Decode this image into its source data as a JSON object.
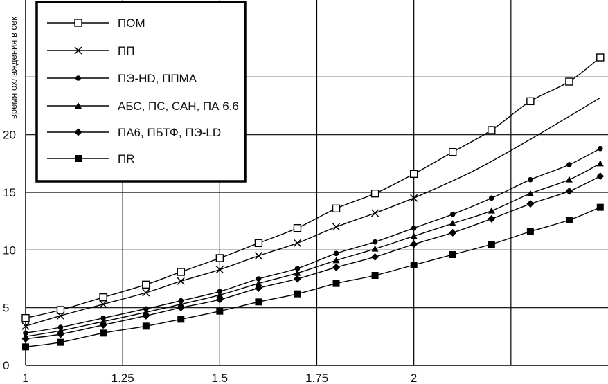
{
  "chart_data": {
    "type": "line",
    "ylabel": "время охлаждения в сек",
    "xlabel": "",
    "xlim": [
      1,
      2.5
    ],
    "ylim": [
      0,
      30
    ],
    "grid": true,
    "legend_position": "top-left",
    "x_ticks": [
      {
        "value": 1,
        "label": "1"
      },
      {
        "value": 1.25,
        "label": "1.25"
      },
      {
        "value": 1.5,
        "label": "1.5"
      },
      {
        "value": 1.75,
        "label": "1.75"
      },
      {
        "value": 2,
        "label": "2"
      }
    ],
    "x_grid": [
      1.25,
      1.5,
      1.75,
      2,
      2.25
    ],
    "y_ticks": [
      {
        "value": 0,
        "label": "0"
      },
      {
        "value": 5,
        "label": "5"
      },
      {
        "value": 10,
        "label": "10"
      },
      {
        "value": 15,
        "label": "15"
      },
      {
        "value": 20,
        "label": "20"
      }
    ],
    "y_grid": [
      5,
      10,
      15,
      20,
      25
    ],
    "series": [
      {
        "name": "ПОМ",
        "marker": "open-square",
        "draw_markers": true,
        "x": [
          1.0,
          1.09,
          1.2,
          1.31,
          1.4,
          1.5,
          1.6,
          1.7,
          1.8,
          1.9,
          2.0,
          2.1,
          2.2,
          2.3,
          2.4,
          2.48
        ],
        "y": [
          4.1,
          4.8,
          5.9,
          7.0,
          8.1,
          9.3,
          10.6,
          11.9,
          13.6,
          14.9,
          16.6,
          18.5,
          20.4,
          22.9,
          24.6,
          26.7
        ]
      },
      {
        "name": "ПП",
        "marker": "cross",
        "draw_markers": true,
        "x": [
          1.0,
          1.09,
          1.2,
          1.31,
          1.4,
          1.5,
          1.6,
          1.7,
          1.8,
          1.9,
          2.0
        ],
        "y": [
          3.4,
          4.3,
          5.3,
          6.3,
          7.3,
          8.3,
          9.5,
          10.6,
          12.0,
          13.2,
          14.5
        ],
        "extension_x": [
          2.0,
          2.15,
          2.3,
          2.48
        ],
        "extension_y": [
          14.5,
          16.8,
          19.6,
          23.2
        ]
      },
      {
        "name": "ПЭ-HD, ППМА",
        "marker": "dot",
        "draw_markers": true,
        "x": [
          1.0,
          1.09,
          1.2,
          1.31,
          1.4,
          1.5,
          1.6,
          1.7,
          1.8,
          1.9,
          2.0,
          2.1,
          2.2,
          2.3,
          2.4,
          2.48
        ],
        "y": [
          2.8,
          3.3,
          4.1,
          4.9,
          5.6,
          6.4,
          7.5,
          8.4,
          9.7,
          10.7,
          11.9,
          13.1,
          14.5,
          16.1,
          17.4,
          18.8
        ]
      },
      {
        "name": "АБС, ПС, САН, ПА 6.6",
        "marker": "triangle",
        "draw_markers": true,
        "x": [
          1.0,
          1.09,
          1.2,
          1.31,
          1.4,
          1.5,
          1.6,
          1.7,
          1.8,
          1.9,
          2.0,
          2.1,
          2.2,
          2.3,
          2.4,
          2.48
        ],
        "y": [
          2.5,
          3.0,
          3.8,
          4.6,
          5.3,
          6.1,
          7.1,
          8.0,
          9.1,
          10.1,
          11.2,
          12.3,
          13.4,
          14.9,
          16.1,
          17.5
        ]
      },
      {
        "name": "ПА6, ПБТФ, ПЭ-LD",
        "marker": "diamond",
        "draw_markers": true,
        "x": [
          1.0,
          1.09,
          1.2,
          1.31,
          1.4,
          1.5,
          1.6,
          1.7,
          1.8,
          1.9,
          2.0,
          2.1,
          2.2,
          2.3,
          2.4,
          2.48
        ],
        "y": [
          2.3,
          2.7,
          3.5,
          4.3,
          5.0,
          5.7,
          6.7,
          7.5,
          8.5,
          9.4,
          10.5,
          11.5,
          12.7,
          14.0,
          15.1,
          16.4
        ]
      },
      {
        "name": "ПR",
        "marker": "filled-square",
        "draw_markers": true,
        "x": [
          1.0,
          1.09,
          1.2,
          1.31,
          1.4,
          1.5,
          1.6,
          1.7,
          1.8,
          1.9,
          2.0,
          2.1,
          2.2,
          2.3,
          2.4,
          2.48
        ],
        "y": [
          1.6,
          2.0,
          2.8,
          3.4,
          4.0,
          4.7,
          5.5,
          6.2,
          7.1,
          7.8,
          8.7,
          9.6,
          10.5,
          11.6,
          12.6,
          13.7
        ]
      }
    ]
  }
}
